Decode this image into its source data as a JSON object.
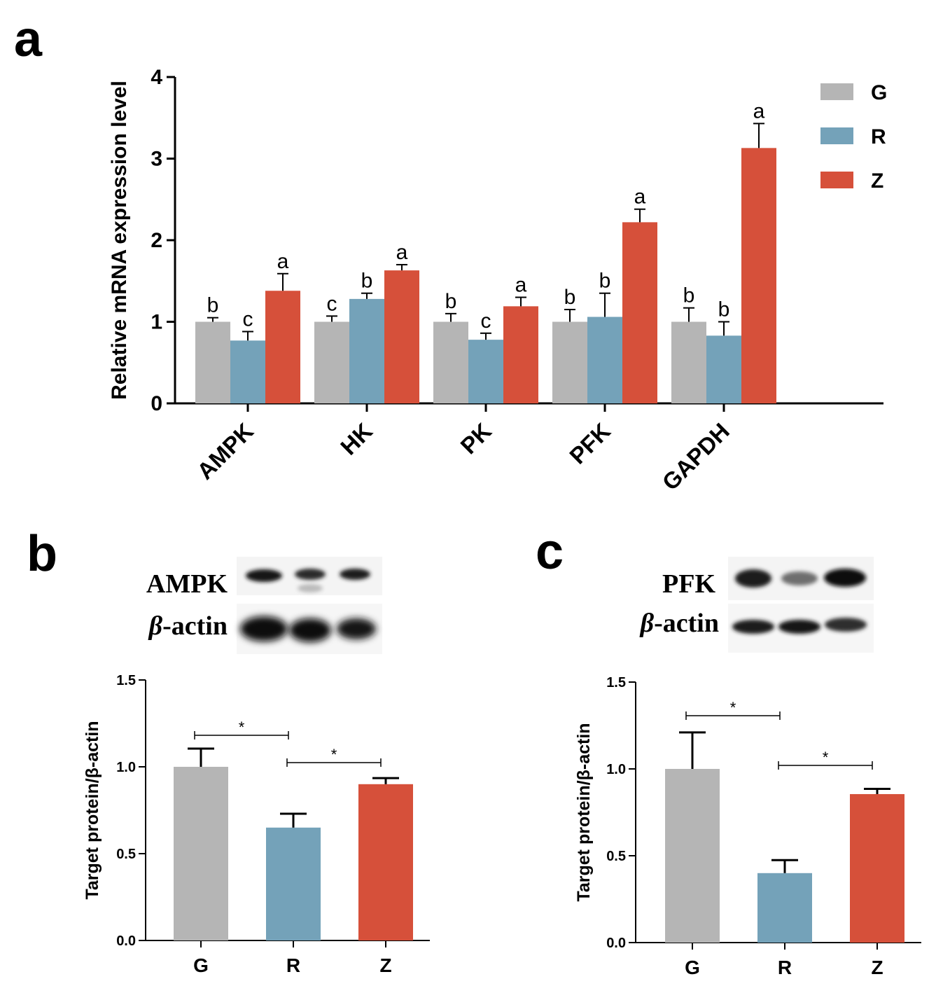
{
  "colors": {
    "G": "#b5b5b5",
    "R": "#74a2b9",
    "Z": "#d6503a",
    "axis": "#000000"
  },
  "panel_labels": {
    "a": "a",
    "b": "b",
    "c": "c"
  },
  "blots": {
    "b": {
      "target_label": "AMPK",
      "ref_label_prefix": "β",
      "ref_label_suffix": "-actin"
    },
    "c": {
      "target_label": "PFK",
      "ref_label_prefix": "β",
      "ref_label_suffix": "-actin"
    }
  },
  "chart_data": [
    {
      "id": "a",
      "type": "bar",
      "title": "",
      "xlabel": "",
      "ylabel": "Relative mRNA expression level",
      "ylim": [
        0,
        4
      ],
      "yticks": [
        "0",
        "1",
        "2",
        "3",
        "4"
      ],
      "categories": [
        "AMPK",
        "HK",
        "PK",
        "PFK",
        "GAPDH"
      ],
      "legend": {
        "placement": "top-right",
        "entries": [
          "G",
          "R",
          "Z"
        ]
      },
      "series": [
        {
          "name": "G",
          "values": [
            1.0,
            1.0,
            1.0,
            1.0,
            1.0
          ],
          "errors": [
            0.05,
            0.07,
            0.1,
            0.15,
            0.17
          ],
          "letters": [
            "b",
            "c",
            "b",
            "b",
            "b"
          ]
        },
        {
          "name": "R",
          "values": [
            0.77,
            1.28,
            0.78,
            1.06,
            0.83
          ],
          "errors": [
            0.11,
            0.07,
            0.08,
            0.29,
            0.17
          ],
          "letters": [
            "c",
            "b",
            "c",
            "b",
            "b"
          ]
        },
        {
          "name": "Z",
          "values": [
            1.38,
            1.63,
            1.19,
            2.22,
            3.13
          ],
          "errors": [
            0.21,
            0.07,
            0.11,
            0.16,
            0.3
          ],
          "letters": [
            "a",
            "a",
            "a",
            "a",
            "a"
          ]
        }
      ]
    },
    {
      "id": "b",
      "type": "bar",
      "title": "",
      "xlabel": "",
      "ylabel": "Target protein/β-actin",
      "ylim": [
        0,
        1.5
      ],
      "yticks": [
        "0.0",
        "0.5",
        "1.0",
        "1.5"
      ],
      "categories": [
        "G",
        "R",
        "Z"
      ],
      "values": [
        1.0,
        0.65,
        0.9
      ],
      "errors": [
        0.105,
        0.08,
        0.035
      ],
      "significance": [
        {
          "from": 0,
          "to": 1,
          "label": "*"
        },
        {
          "from": 1,
          "to": 2,
          "label": "*"
        }
      ]
    },
    {
      "id": "c",
      "type": "bar",
      "title": "",
      "xlabel": "",
      "ylabel": "Target protein/β-actin",
      "ylim": [
        0,
        1.5
      ],
      "yticks": [
        "0.0",
        "0.5",
        "1.0",
        "1.5"
      ],
      "categories": [
        "G",
        "R",
        "Z"
      ],
      "values": [
        1.0,
        0.4,
        0.855
      ],
      "errors": [
        0.21,
        0.075,
        0.03
      ],
      "significance": [
        {
          "from": 0,
          "to": 1,
          "label": "*"
        },
        {
          "from": 1,
          "to": 2,
          "label": "*"
        }
      ]
    }
  ]
}
